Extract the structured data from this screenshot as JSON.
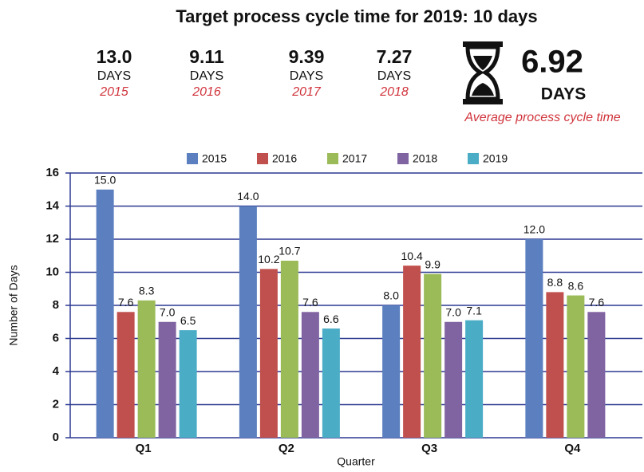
{
  "header": {
    "title": "Target process cycle time for 2019: 10 days",
    "stats": [
      {
        "value": "13.0",
        "unit": "DAYS",
        "year": "2015"
      },
      {
        "value": "9.11",
        "unit": "DAYS",
        "year": "2016"
      },
      {
        "value": "9.39",
        "unit": "DAYS",
        "year": "2017"
      },
      {
        "value": "7.27",
        "unit": "DAYS",
        "year": "2018"
      }
    ],
    "average": {
      "value": "6.92",
      "unit": "DAYS",
      "caption": "Average process cycle time"
    }
  },
  "chart_data": {
    "type": "bar",
    "categories": [
      "Q1",
      "Q2",
      "Q3",
      "Q4"
    ],
    "series": [
      {
        "name": "2015",
        "color": "#5b7fbf",
        "values": [
          15,
          14,
          8,
          12
        ],
        "value_labels": [
          "15.0",
          "14.0",
          "8.0",
          "12.0"
        ]
      },
      {
        "name": "2016",
        "color": "#c0504d",
        "values": [
          7.6,
          10.2,
          10.4,
          8.8
        ],
        "value_labels": [
          "7.6",
          "10.2",
          "10.4",
          "8.8"
        ]
      },
      {
        "name": "2017",
        "color": "#9bbb59",
        "values": [
          8.3,
          10.7,
          9.9,
          8.6
        ],
        "value_labels": [
          "8.3",
          "10.7",
          "9.9",
          "8.6"
        ]
      },
      {
        "name": "2018",
        "color": "#8064a2",
        "values": [
          7.0,
          7.6,
          7.0,
          7.6
        ],
        "value_labels": [
          "7.0",
          "7.6",
          "7.0",
          "7.6"
        ]
      },
      {
        "name": "2019",
        "color": "#4bacc6",
        "values": [
          6.5,
          6.6,
          7.1,
          null
        ],
        "value_labels": [
          "6.5",
          "6.6",
          "7.1",
          null
        ]
      }
    ],
    "x_label": "Quarter",
    "y_label": "Number of Days",
    "ylim": [
      0,
      16
    ],
    "yticks": [
      0,
      2,
      4,
      6,
      8,
      10,
      12,
      14,
      16
    ],
    "grid": true,
    "legend": "top"
  }
}
